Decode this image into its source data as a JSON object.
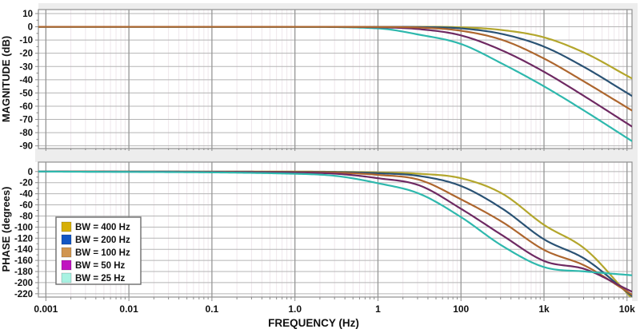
{
  "figure": {
    "xlabel": "FREQUENCY (Hz)",
    "x_tick_labels": [
      "0.001",
      "0.01",
      "0.1",
      "1.0",
      "1",
      "100",
      "1k",
      "10k"
    ]
  },
  "colors": {
    "page_bg": "#ffffff",
    "panel_bg": "#ffffff",
    "backing": "#ededed",
    "grid_h": "#b5b5b5",
    "grid_major_v": "#969696",
    "grid_minor_v": "#efe7ec",
    "frame": "#8f8f8f",
    "text": "#111111",
    "tick": "#8a8a8a"
  },
  "legend": {
    "entries": [
      {
        "label": "BW = 400 Hz",
        "swatch_color": "#d6af08"
      },
      {
        "label": "BW = 200 Hz",
        "swatch_color": "#1156c4"
      },
      {
        "label": "BW = 100 Hz",
        "swatch_color": "#d0954f"
      },
      {
        "label": "BW = 50 Hz",
        "swatch_color": "#c013c0"
      },
      {
        "label": "BW = 25 Hz",
        "swatch_color": "#a8f2e2"
      }
    ]
  },
  "chart_data": [
    {
      "type": "line",
      "panel": "magnitude",
      "ylabel": "MAGNITUDE (dB)",
      "xscale": "log",
      "xlim": [
        0.001,
        10000
      ],
      "ylim": [
        10,
        -90
      ],
      "yticks": [
        10,
        0,
        -10,
        -20,
        -30,
        -40,
        -50,
        -60,
        -70,
        -80,
        -90
      ],
      "grid": true,
      "x_hz": [
        0.001,
        1,
        10,
        31.6,
        100,
        316,
        1000,
        3160,
        10000
      ],
      "series": [
        {
          "name": "BW = 400 Hz",
          "color": "#b3a62c",
          "values": [
            0,
            0,
            0,
            0,
            -0.4,
            -2.5,
            -8,
            -20,
            -37
          ]
        },
        {
          "name": "BW = 200 Hz",
          "color": "#2a5274",
          "values": [
            0,
            0,
            0,
            -0.2,
            -1.2,
            -5.5,
            -15,
            -31,
            -50
          ]
        },
        {
          "name": "BW = 100 Hz",
          "color": "#ad662e",
          "values": [
            0,
            0,
            -0.1,
            -0.6,
            -3,
            -10,
            -24,
            -42,
            -61
          ]
        },
        {
          "name": "BW = 50 Hz",
          "color": "#6e2962",
          "values": [
            0,
            0,
            -0.4,
            -1.8,
            -6.5,
            -18,
            -34,
            -53,
            -73
          ]
        },
        {
          "name": "BW = 25 Hz",
          "color": "#2eb8ad",
          "values": [
            0,
            -0.1,
            -1.2,
            -6,
            -13,
            -28,
            -45,
            -64,
            -84
          ]
        }
      ]
    },
    {
      "type": "line",
      "panel": "phase",
      "ylabel": "PHASE (degrees)",
      "xscale": "log",
      "xlim": [
        0.001,
        10000
      ],
      "ylim": [
        0,
        -220
      ],
      "yticks": [
        0,
        -20,
        -40,
        -60,
        -80,
        -100,
        -120,
        -140,
        -160,
        -180,
        -200,
        -220
      ],
      "grid": true,
      "x_hz": [
        0.001,
        1,
        3.16,
        10,
        31.6,
        100,
        316,
        1000,
        3160,
        10000
      ],
      "series": [
        {
          "name": "BW = 400 Hz",
          "color": "#b3a62c",
          "values": [
            0,
            0,
            -0.5,
            -1.5,
            -4,
            -12,
            -40,
            -96,
            -140,
            -219
          ]
        },
        {
          "name": "BW = 200 Hz",
          "color": "#2a5274",
          "values": [
            0,
            -0.5,
            -1,
            -3,
            -8,
            -26,
            -67,
            -122,
            -158,
            -217
          ]
        },
        {
          "name": "BW = 100 Hz",
          "color": "#ad662e",
          "values": [
            0,
            -1,
            -2,
            -6,
            -15,
            -50,
            -91,
            -141,
            -170,
            -216
          ]
        },
        {
          "name": "BW = 50 Hz",
          "color": "#6e2962",
          "values": [
            0,
            -2,
            -4,
            -12,
            -25,
            -67,
            -115,
            -161,
            -176,
            -212
          ]
        },
        {
          "name": "BW = 25 Hz",
          "color": "#2eb8ad",
          "values": [
            0,
            -4,
            -8,
            -21,
            -40,
            -82,
            -134,
            -172,
            -180,
            -186
          ]
        }
      ]
    }
  ]
}
